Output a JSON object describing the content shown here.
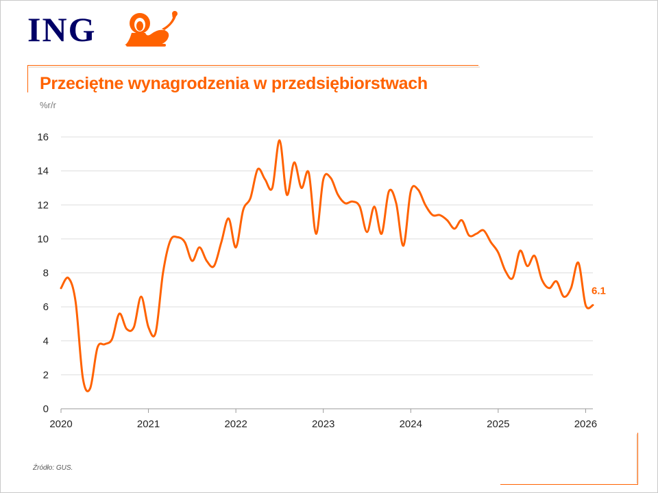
{
  "brand": {
    "name": "ING",
    "logo_color": "#000066",
    "lion_color": "#ff6200"
  },
  "header": {
    "title": "Przeciętne wynagrodzenia w przedsiębiorstwach",
    "subtitle": "%r/r"
  },
  "footer": {
    "source": "Źródło: GUS."
  },
  "colors": {
    "accent": "#ff6200",
    "grid": "#dddddd",
    "axis": "#999999"
  },
  "chart_data": {
    "type": "line",
    "title": "Przeciętne wynagrodzenia w przedsiębiorstwach",
    "ylabel": "%r/r",
    "xlabel": "",
    "ylim": [
      0,
      16
    ],
    "yticks": [
      0,
      2,
      4,
      6,
      8,
      10,
      12,
      14,
      16
    ],
    "xlim": [
      2020.0,
      2026.083
    ],
    "xticks": [
      2020,
      2021,
      2022,
      2023,
      2024,
      2025,
      2026
    ],
    "grid": true,
    "last_value_label": "6.1",
    "series": [
      {
        "color": "#ff6200",
        "x": [
          2020.0,
          2020.0833,
          2020.1667,
          2020.25,
          2020.3333,
          2020.4167,
          2020.5,
          2020.5833,
          2020.6667,
          2020.75,
          2020.8333,
          2020.9167,
          2021.0,
          2021.0833,
          2021.1667,
          2021.25,
          2021.3333,
          2021.4167,
          2021.5,
          2021.5833,
          2021.6667,
          2021.75,
          2021.8333,
          2021.9167,
          2022.0,
          2022.0833,
          2022.1667,
          2022.25,
          2022.3333,
          2022.4167,
          2022.5,
          2022.5833,
          2022.6667,
          2022.75,
          2022.8333,
          2022.9167,
          2023.0,
          2023.0833,
          2023.1667,
          2023.25,
          2023.3333,
          2023.4167,
          2023.5,
          2023.5833,
          2023.6667,
          2023.75,
          2023.8333,
          2023.9167,
          2024.0,
          2024.0833,
          2024.1667,
          2024.25,
          2024.3333,
          2024.4167,
          2024.5,
          2024.5833,
          2024.6667,
          2024.75,
          2024.8333,
          2024.9167,
          2025.0,
          2025.0833,
          2025.1667,
          2025.25,
          2025.3333,
          2025.4167,
          2025.5,
          2025.5833,
          2025.6667,
          2025.75,
          2025.8333,
          2025.9167,
          2026.0,
          2026.0833
        ],
        "values": [
          7.1,
          7.7,
          6.3,
          1.8,
          1.2,
          3.6,
          3.8,
          4.1,
          5.6,
          4.7,
          4.8,
          6.6,
          4.8,
          4.5,
          8.0,
          9.9,
          10.1,
          9.8,
          8.7,
          9.5,
          8.7,
          8.4,
          9.8,
          11.2,
          9.5,
          11.7,
          12.4,
          14.1,
          13.5,
          13.0,
          15.8,
          12.6,
          14.5,
          13.0,
          13.9,
          10.3,
          13.5,
          13.6,
          12.6,
          12.1,
          12.2,
          11.9,
          10.4,
          11.9,
          10.3,
          12.8,
          12.1,
          9.6,
          12.8,
          12.9,
          12.0,
          11.4,
          11.4,
          11.1,
          10.6,
          11.1,
          10.2,
          10.3,
          10.5,
          9.8,
          9.2,
          8.1,
          7.7,
          9.3,
          8.4,
          9.0,
          7.6,
          7.1,
          7.5,
          6.6,
          7.1,
          8.6,
          6.1,
          6.1
        ]
      }
    ]
  }
}
